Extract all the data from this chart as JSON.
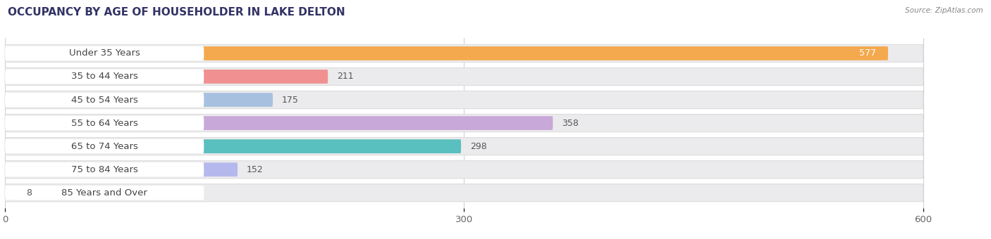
{
  "title": "OCCUPANCY BY AGE OF HOUSEHOLDER IN LAKE DELTON",
  "source": "Source: ZipAtlas.com",
  "categories": [
    "Under 35 Years",
    "35 to 44 Years",
    "45 to 54 Years",
    "55 to 64 Years",
    "65 to 74 Years",
    "75 to 84 Years",
    "85 Years and Over"
  ],
  "values": [
    577,
    211,
    175,
    358,
    298,
    152,
    8
  ],
  "bar_colors": [
    "#F5A94E",
    "#F09090",
    "#A8C0E0",
    "#C8A8D8",
    "#5ABFBF",
    "#B4B8EC",
    "#F4A8BC"
  ],
  "bar_bg_color": "#EBEBED",
  "xlim_max": 600,
  "xticks": [
    0,
    300,
    600
  ],
  "title_fontsize": 11,
  "label_fontsize": 9.5,
  "value_fontsize": 9,
  "background_color": "#ffffff",
  "label_bg_color": "#ffffff",
  "label_text_color": "#444444",
  "value_inside_color": "#ffffff",
  "value_outside_color": "#555555"
}
